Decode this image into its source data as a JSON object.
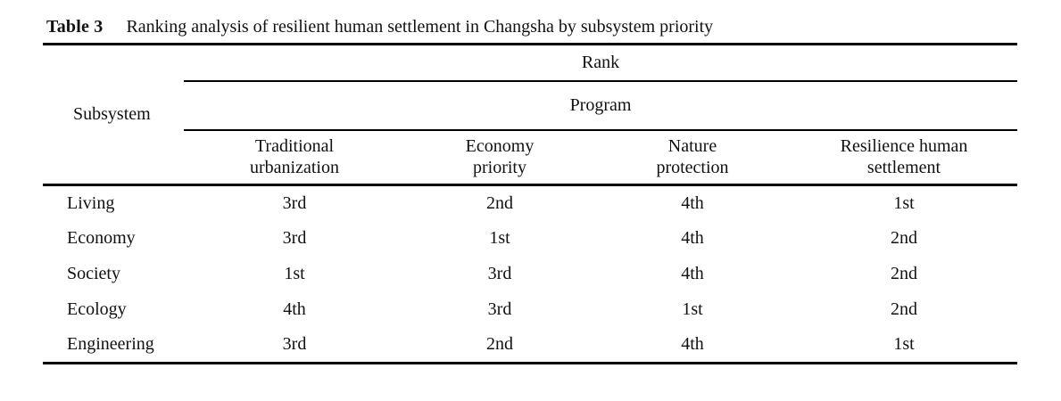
{
  "document": {
    "caption": {
      "label": "Table 3",
      "text": "Ranking analysis of resilient human settlement in Changsha by subsystem priority"
    }
  },
  "table": {
    "corner_header": "Subsystem",
    "group_headers": {
      "rank": "Rank",
      "program": "Program"
    },
    "columns": [
      [
        "Traditional",
        "urbanization"
      ],
      [
        "Economy",
        "priority"
      ],
      [
        "Nature",
        "protection"
      ],
      [
        "Resilience human",
        "settlement"
      ]
    ],
    "rows": [
      {
        "label": "Living",
        "values": [
          "3rd",
          "2nd",
          "4th",
          "1st"
        ]
      },
      {
        "label": "Economy",
        "values": [
          "3rd",
          "1st",
          "4th",
          "2nd"
        ]
      },
      {
        "label": "Society",
        "values": [
          "1st",
          "3rd",
          "4th",
          "2nd"
        ]
      },
      {
        "label": "Ecology",
        "values": [
          "4th",
          "3rd",
          "1st",
          "2nd"
        ]
      },
      {
        "label": "Engineering",
        "values": [
          "3rd",
          "2nd",
          "4th",
          "1st"
        ]
      }
    ],
    "colors": {
      "rule": "#000000",
      "text": "#111111",
      "background": "#ffffff"
    }
  }
}
